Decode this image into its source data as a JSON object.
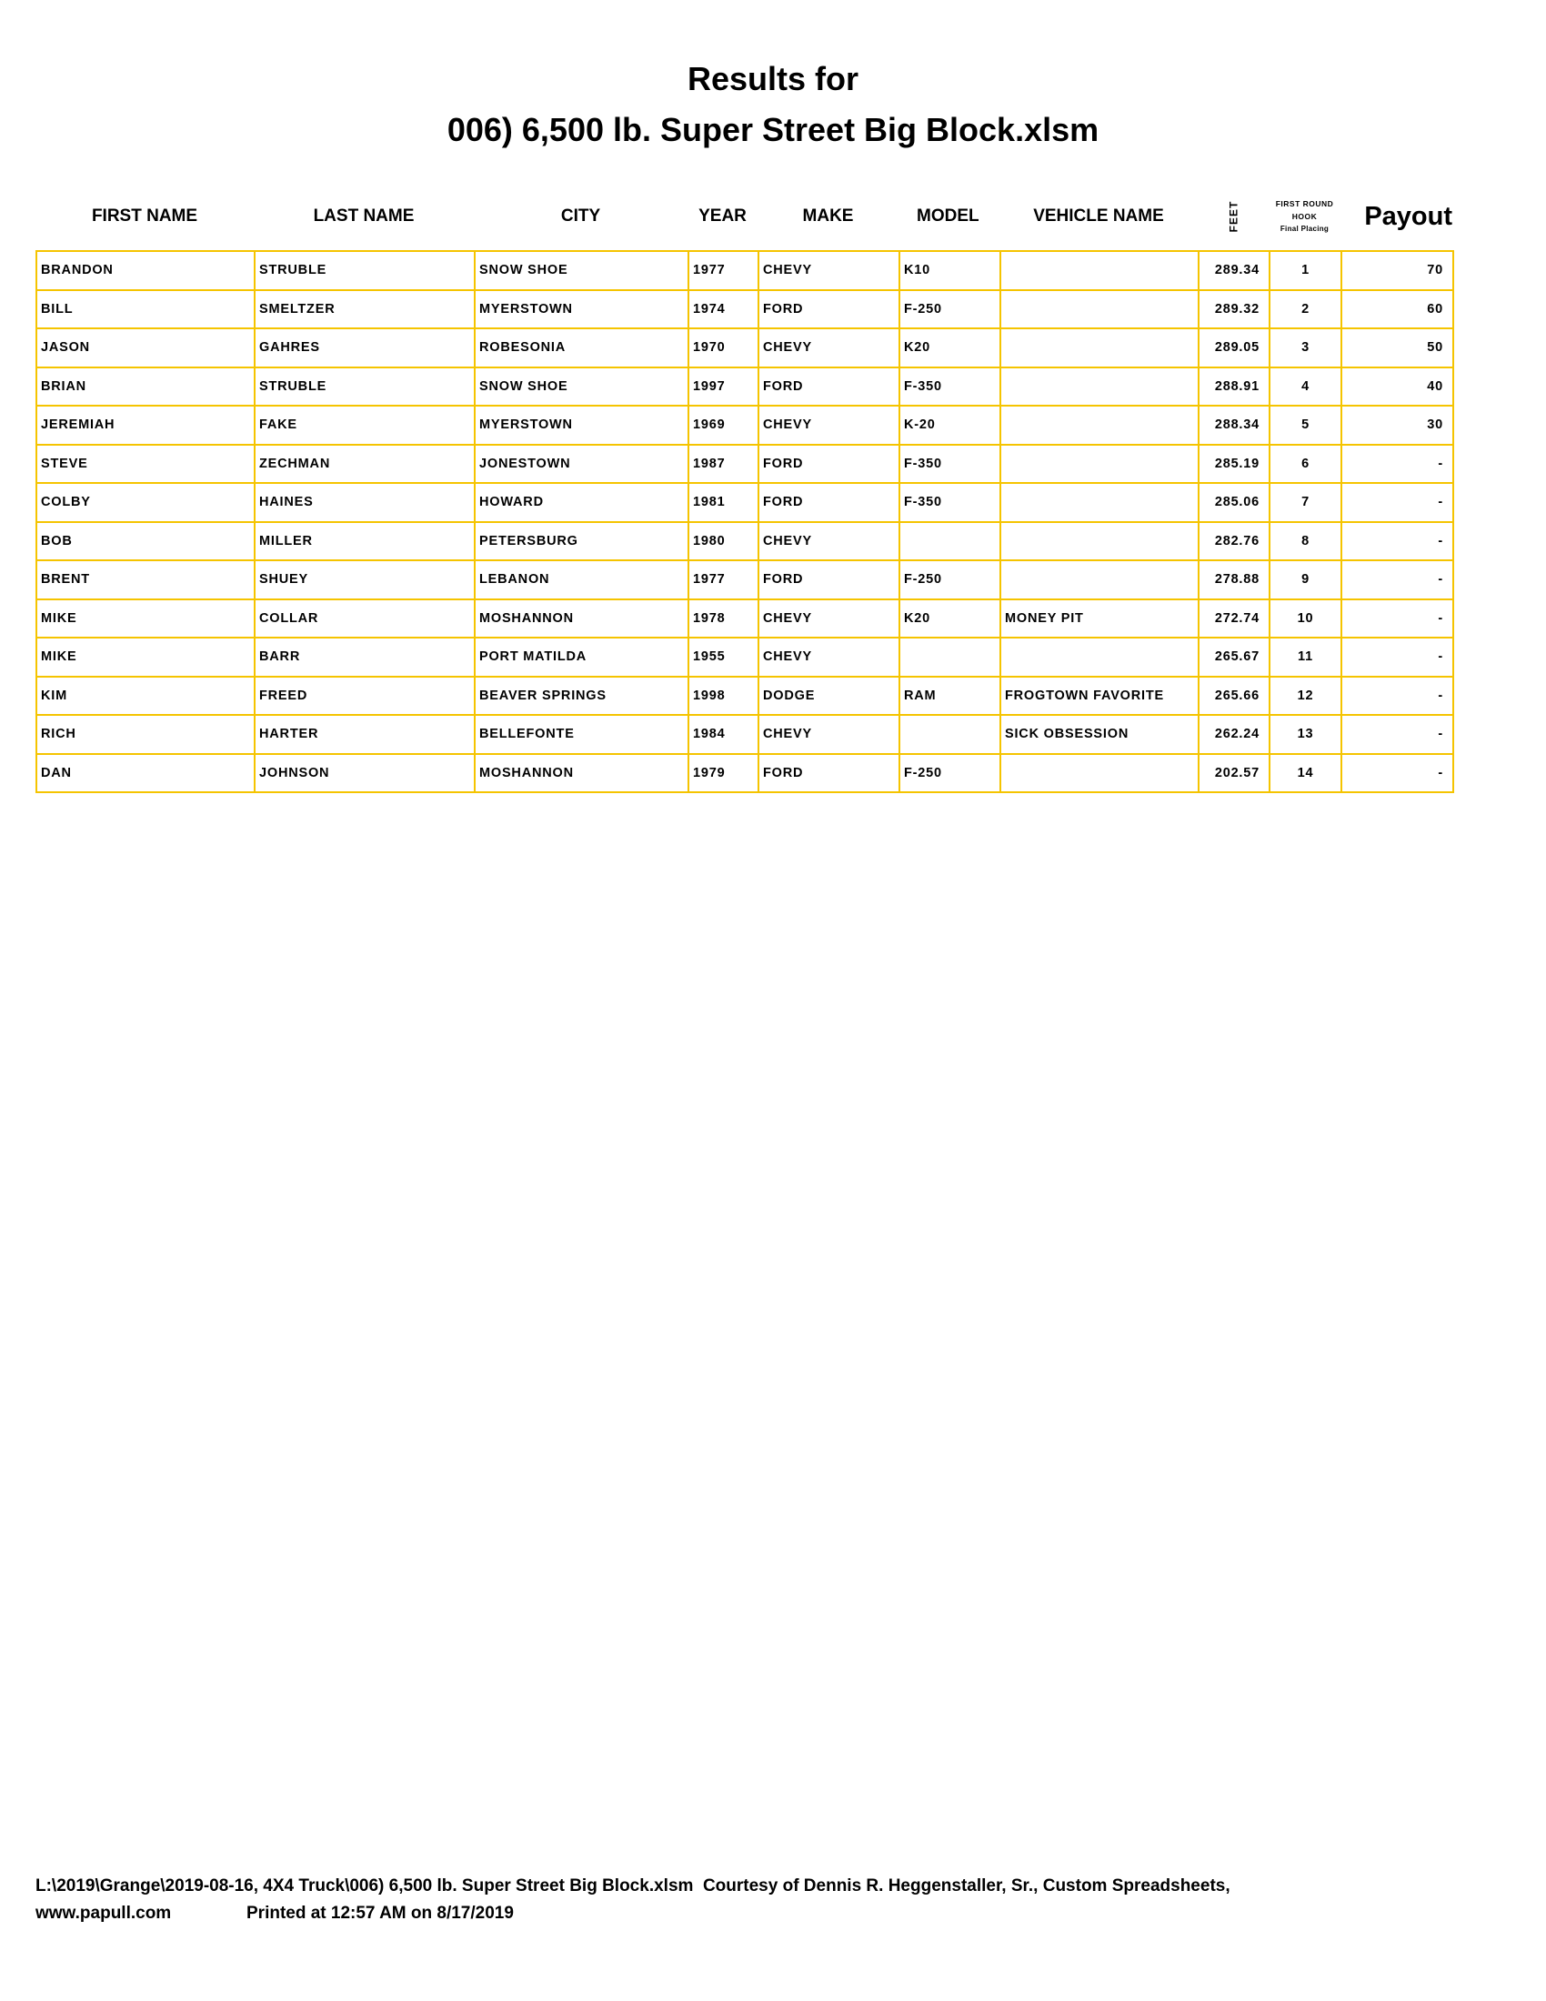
{
  "title": {
    "line1": "Results for",
    "line2": "006) 6,500 lb. Super Street Big Block.xlsm"
  },
  "accent_color": "#f5c400",
  "headers": {
    "first": "FIRST NAME",
    "last": "LAST NAME",
    "city": "CITY",
    "year": "YEAR",
    "make": "MAKE",
    "model": "MODEL",
    "vehicle": "VEHICLE NAME",
    "feet": "FEET",
    "hook1": "FIRST ROUND",
    "hook2": "HOOK",
    "hook3": "Final Placing",
    "payout": "Payout"
  },
  "rows": [
    [
      "BRANDON",
      "STRUBLE",
      "SNOW SHOE",
      "1977",
      "CHEVY",
      "K10",
      "",
      "289.34",
      "1",
      "70"
    ],
    [
      "BILL",
      "SMELTZER",
      "MYERSTOWN",
      "1974",
      "FORD",
      "F-250",
      "",
      "289.32",
      "2",
      "60"
    ],
    [
      "JASON",
      "GAHRES",
      "ROBESONIA",
      "1970",
      "CHEVY",
      "K20",
      "",
      "289.05",
      "3",
      "50"
    ],
    [
      "BRIAN",
      "STRUBLE",
      "SNOW SHOE",
      "1997",
      "FORD",
      "F-350",
      "",
      "288.91",
      "4",
      "40"
    ],
    [
      "JEREMIAH",
      "FAKE",
      "MYERSTOWN",
      "1969",
      "CHEVY",
      "K-20",
      "",
      "288.34",
      "5",
      "30"
    ],
    [
      "STEVE",
      "ZECHMAN",
      "JONESTOWN",
      "1987",
      "FORD",
      "F-350",
      "",
      "285.19",
      "6",
      "-"
    ],
    [
      "COLBY",
      "HAINES",
      "HOWARD",
      "1981",
      "FORD",
      "F-350",
      "",
      "285.06",
      "7",
      "-"
    ],
    [
      "BOB",
      "MILLER",
      "PETERSBURG",
      "1980",
      "CHEVY",
      "",
      "",
      "282.76",
      "8",
      "-"
    ],
    [
      "BRENT",
      "SHUEY",
      "LEBANON",
      "1977",
      "FORD",
      "F-250",
      "",
      "278.88",
      "9",
      "-"
    ],
    [
      "MIKE",
      "COLLAR",
      "MOSHANNON",
      "1978",
      "CHEVY",
      "K20",
      "MONEY PIT",
      "272.74",
      "10",
      "-"
    ],
    [
      "MIKE",
      "BARR",
      "PORT MATILDA",
      "1955",
      "CHEVY",
      "",
      "",
      "265.67",
      "11",
      "-"
    ],
    [
      "KIM",
      "FREED",
      "BEAVER SPRINGS",
      "1998",
      "DODGE",
      "RAM",
      "FROGTOWN FAVORITE",
      "265.66",
      "12",
      "-"
    ],
    [
      "RICH",
      "HARTER",
      "BELLEFONTE",
      "1984",
      "CHEVY",
      "",
      "SICK OBSESSION",
      "262.24",
      "13",
      "-"
    ],
    [
      "DAN",
      "JOHNSON",
      "MOSHANNON",
      "1979",
      "FORD",
      "F-250",
      "",
      "202.57",
      "14",
      "-"
    ]
  ],
  "footer": {
    "line1": "L:\\2019\\Grange\\2019-08-16, 4X4 Truck\\006) 6,500 lb. Super Street Big Block.xlsm  Courtesy of Dennis R. Heggenstaller, Sr., Custom Spreadsheets,",
    "site": "www.papull.com",
    "printed": "Printed at 12:57 AM on 8/17/2019"
  }
}
